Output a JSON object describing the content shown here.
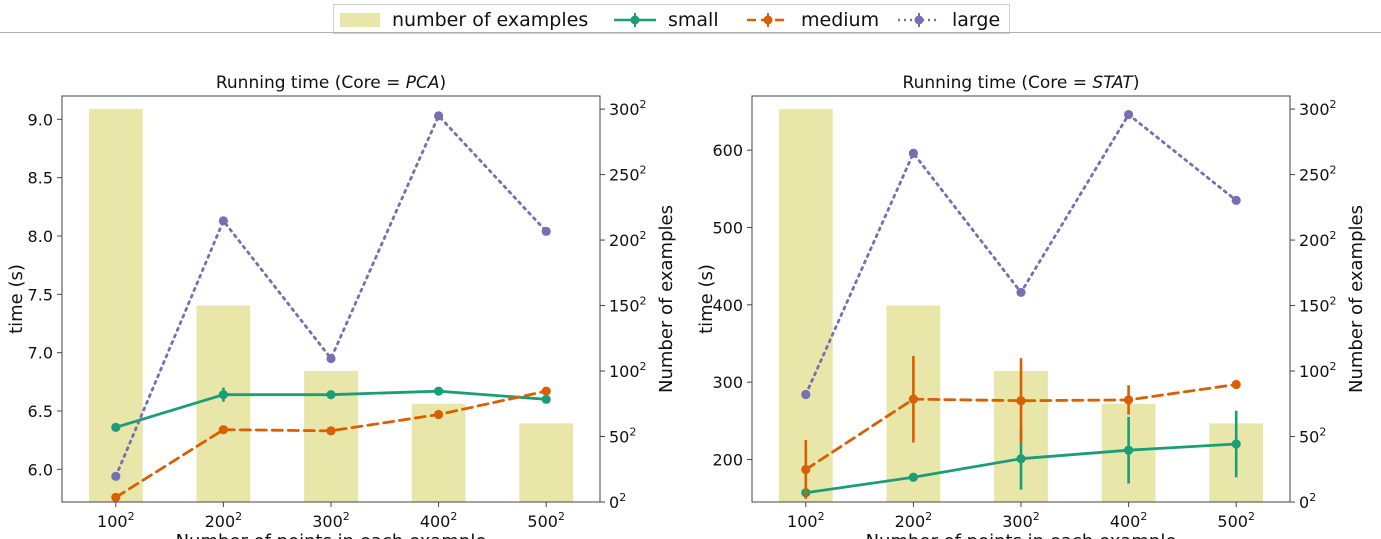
{
  "legend": {
    "bars_label": "number of examples",
    "series": [
      {
        "name": "small",
        "color": "#1b9e77"
      },
      {
        "name": "medium",
        "color": "#d95f02"
      },
      {
        "name": "large",
        "color": "#7570b3"
      }
    ],
    "bar_color": "#e8e6a8"
  },
  "chart_data": [
    {
      "type": "bar+line",
      "title_prefix": "Running time (Core = ",
      "title_core": "PCA",
      "title_suffix": ")",
      "xlabel": "Number of points in each example",
      "ylabel": "time (s)",
      "y2label": "Number of examples",
      "categories": [
        "100",
        "200",
        "300",
        "400",
        "500"
      ],
      "category_exponent": "2",
      "ylim": [
        5.72,
        9.2
      ],
      "yticks": [
        "6.0",
        "6.5",
        "7.0",
        "7.5",
        "8.0",
        "8.5",
        "9.0"
      ],
      "y2lim": [
        0,
        310
      ],
      "y2ticks": [
        "0",
        "50",
        "100",
        "150",
        "200",
        "250",
        "300"
      ],
      "y2_exponent": "2",
      "bars": [
        300,
        150,
        100,
        75,
        60
      ],
      "series": [
        {
          "name": "small",
          "values": [
            6.36,
            6.64,
            6.64,
            6.67,
            6.6
          ],
          "err": [
            0.0,
            0.06,
            0.0,
            0.0,
            0.0
          ]
        },
        {
          "name": "medium",
          "values": [
            5.76,
            6.34,
            6.33,
            6.47,
            6.67
          ],
          "err": [
            0,
            0,
            0,
            0,
            0
          ]
        },
        {
          "name": "large",
          "values": [
            5.94,
            8.13,
            6.95,
            9.03,
            8.04
          ],
          "err": [
            0,
            0,
            0,
            0,
            0
          ]
        }
      ],
      "grid": false
    },
    {
      "type": "bar+line",
      "title_prefix": "Running time (Core = ",
      "title_core": "STAT",
      "title_suffix": ")",
      "xlabel": "Number of points in each example",
      "ylabel": "time (s)",
      "y2label": "Number of examples",
      "categories": [
        "100",
        "200",
        "300",
        "400",
        "500"
      ],
      "category_exponent": "2",
      "ylim": [
        145,
        670
      ],
      "yticks": [
        "200",
        "300",
        "400",
        "500",
        "600"
      ],
      "y2lim": [
        0,
        310
      ],
      "y2ticks": [
        "0",
        "50",
        "100",
        "150",
        "200",
        "250",
        "300"
      ],
      "y2_exponent": "2",
      "bars": [
        300,
        150,
        100,
        75,
        60
      ],
      "series": [
        {
          "name": "small",
          "values": [
            157,
            177,
            201,
            212,
            220
          ],
          "err": [
            5,
            3,
            40,
            43,
            43
          ]
        },
        {
          "name": "medium",
          "values": [
            187,
            278,
            276,
            277,
            297
          ],
          "err": [
            38,
            56,
            55,
            19,
            3
          ]
        },
        {
          "name": "large",
          "values": [
            284,
            596,
            416,
            646,
            535
          ],
          "err": [
            0,
            0,
            0,
            0,
            0
          ]
        }
      ],
      "grid": false
    }
  ]
}
